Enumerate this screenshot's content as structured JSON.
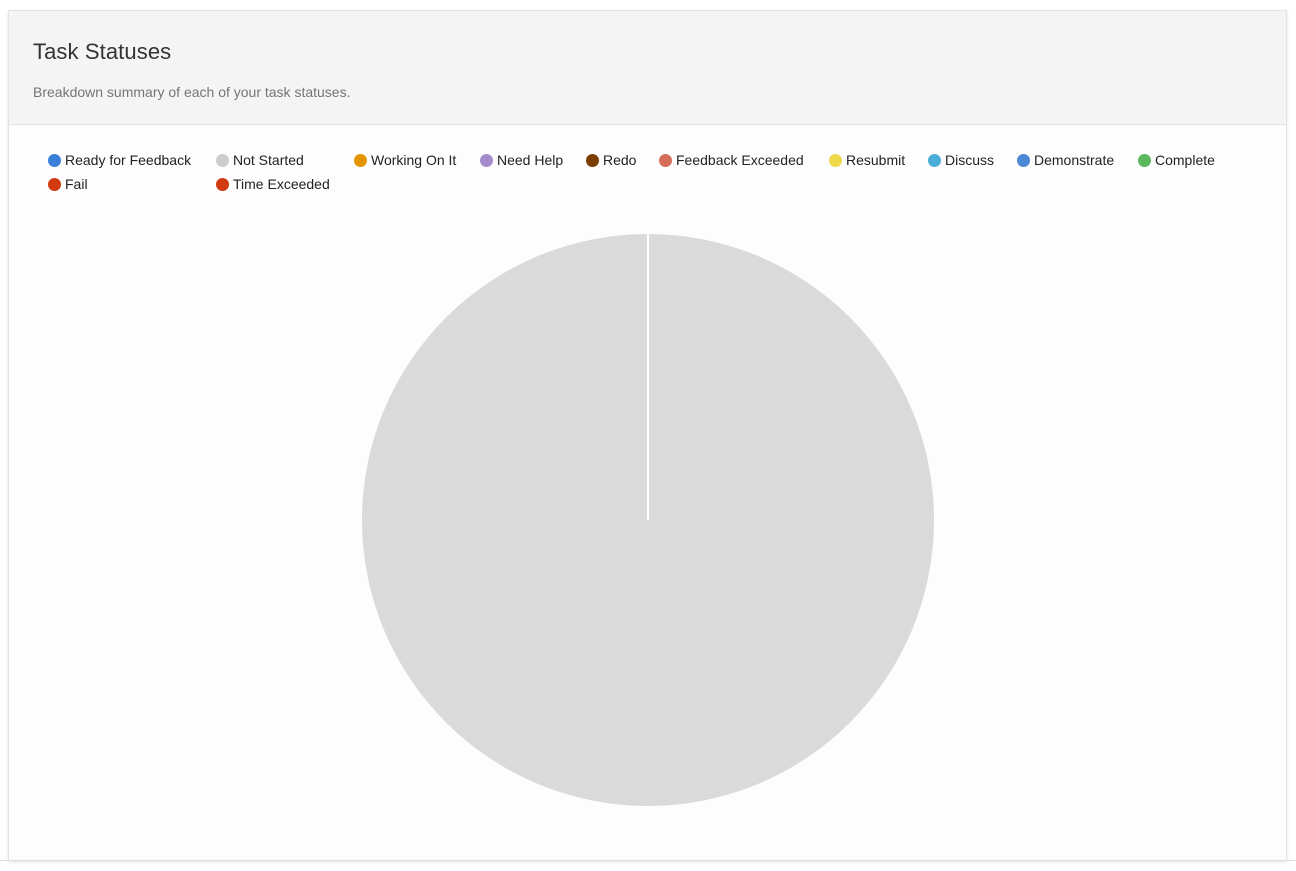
{
  "card": {
    "title": "Task Statuses",
    "subtitle": "Breakdown summary of each of your task statuses."
  },
  "chart_data": {
    "type": "pie",
    "legend_position": "top",
    "series": [
      {
        "name": "Ready for Feedback",
        "value": 0,
        "color": "#3a7fd8"
      },
      {
        "name": "Not Started",
        "value": 1,
        "color": "#cccccc"
      },
      {
        "name": "Working On It",
        "value": 0,
        "color": "#e59500"
      },
      {
        "name": "Need Help",
        "value": 0,
        "color": "#a48ccb"
      },
      {
        "name": "Redo",
        "value": 0,
        "color": "#7a3e00"
      },
      {
        "name": "Feedback Exceeded",
        "value": 0,
        "color": "#d46e56"
      },
      {
        "name": "Resubmit",
        "value": 0,
        "color": "#eed94a"
      },
      {
        "name": "Discuss",
        "value": 0,
        "color": "#4aaed9"
      },
      {
        "name": "Demonstrate",
        "value": 0,
        "color": "#4c88d4"
      },
      {
        "name": "Complete",
        "value": 0,
        "color": "#5cb85c"
      },
      {
        "name": "Fail",
        "value": 0,
        "color": "#d13a0e"
      },
      {
        "name": "Time Exceeded",
        "value": 0,
        "color": "#d13a0e"
      }
    ],
    "slice_fill": "#dadada"
  }
}
